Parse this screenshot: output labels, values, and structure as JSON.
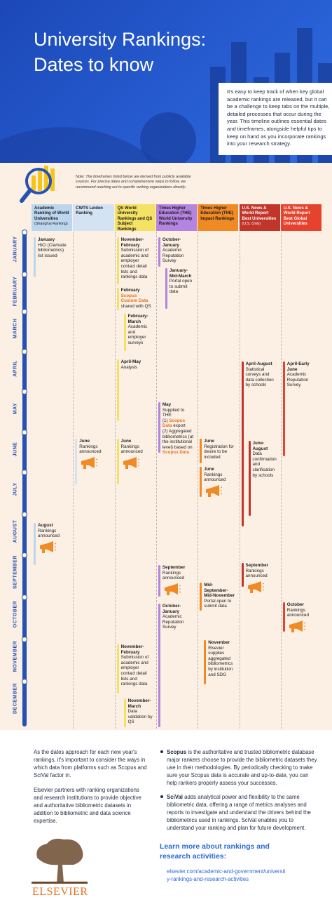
{
  "header": {
    "title": "University Rankings:\nDates to know"
  },
  "intro": "It's easy to keep track of when key global academic rankings are released, but it can be a challenge to keep tabs on the multiple, detailed processes that occur during the year. This timeline outlines essential dates and timeframes, alongside helpful tips to keep on hand as you incorporate rankings into your research strategy.",
  "note": "Note: The timeframes listed below are derived from publicly available sources. For precise dates and comprehensive steps to follow, we recommend reaching out to specific ranking organizations directly.",
  "months": [
    "JANUARY",
    "FEBRUARY",
    "MARCH",
    "APRIL",
    "MAY",
    "JUNE",
    "JULY",
    "AUGUST",
    "SEPTEMBER",
    "OCTOBER",
    "NOVEMBER",
    "DECEMBER"
  ],
  "columns": [
    {
      "header": "Academic Ranking of World Universities",
      "subheader": "(Shanghai Ranking)",
      "color": "#bcd6f0",
      "entries": [
        {
          "when": "January",
          "text": [
            {
              "text": "HiCi (Clarivate bibliometrics) list issued"
            }
          ]
        },
        {
          "when": "August",
          "text": [
            {
              "text": "Rankings announced"
            }
          ]
        }
      ]
    },
    {
      "header": "CWTS Leiden Ranking",
      "color": "#d3e3f4",
      "entries": [
        {
          "when": "June",
          "text": [
            {
              "text": "Rankings announced"
            }
          ]
        }
      ]
    },
    {
      "header": "QS World University Rankings and QS Subject Rankings",
      "color": "#f5e163",
      "entries": [
        {
          "when": "November-February",
          "text": [
            {
              "text": "Submission of academic and employer contact detail lists and rankings data"
            }
          ]
        },
        {
          "when": "February",
          "text": [
            {
              "text": "Scopus Custom Data",
              "highlight": true
            },
            {
              "text": " shared with QS"
            }
          ]
        },
        {
          "when": "February-March",
          "text": [
            {
              "text": "Academic and employer surveys"
            }
          ]
        },
        {
          "when": "April-May",
          "text": [
            {
              "text": "Analysis"
            }
          ]
        },
        {
          "when": "June",
          "text": [
            {
              "text": "Rankings announced"
            }
          ]
        },
        {
          "when": "November-February",
          "text": [
            {
              "text": "Submission of academic and employer contact detail lists and rankings data"
            }
          ]
        },
        {
          "when": "November-March",
          "text": [
            {
              "text": "Data validation by QS"
            }
          ]
        }
      ]
    },
    {
      "header": "Times Higher Education (THE) World University Rankings",
      "color": "#b583e0",
      "entries": [
        {
          "when": "October-January",
          "text": [
            {
              "text": "Academic Reputation Survey"
            }
          ]
        },
        {
          "when": "January-Mid-March",
          "text": [
            {
              "text": "Portal open to submit data"
            }
          ]
        },
        {
          "when": "May",
          "text": [
            {
              "text": "Supplied to THE:\n(1) "
            },
            {
              "text": "Scopus Data",
              "highlight": true
            },
            {
              "text": " export\n(2) Aggregated bibliometrics (at the institutional level) based on "
            },
            {
              "text": "Scopus Data",
              "highlight": true
            }
          ]
        },
        {
          "when": "September",
          "text": [
            {
              "text": "Rankings announced"
            }
          ]
        },
        {
          "when": "October-January",
          "text": [
            {
              "text": "Academic Reputation Survey"
            }
          ]
        }
      ]
    },
    {
      "header": "Times Higher Education (THE) Impact Rankings",
      "color": "#ef8a25",
      "entries": [
        {
          "when": "June",
          "text": [
            {
              "text": "Registration for desire to be included"
            }
          ]
        },
        {
          "when": "June",
          "text": [
            {
              "text": "Rankings announced"
            }
          ]
        },
        {
          "when": "Mid-September-Mid-November",
          "text": [
            {
              "text": "Portal open to submit data"
            }
          ]
        },
        {
          "when": "November",
          "text": [
            {
              "text": "Elsevier supplies aggregated bibliometrics by institution and SDG"
            }
          ]
        }
      ]
    },
    {
      "header": "U.S. News & World Report Best Universities",
      "subheader": "(U.S. Only)",
      "color": "#c1352b",
      "entries": [
        {
          "when": "April-August",
          "text": [
            {
              "text": "Statistical surveys and data collection by schools"
            }
          ]
        },
        {
          "when": "June-August",
          "text": [
            {
              "text": "Data confirmation and clarification by schools"
            }
          ]
        },
        {
          "when": "September",
          "text": [
            {
              "text": "Rankings announced"
            }
          ]
        }
      ]
    },
    {
      "header": "U.S. News & World Report Best Global Universities",
      "color": "#e5432e",
      "entries": [
        {
          "when": "April-Early June",
          "text": [
            {
              "text": "Academic Reputation Survey"
            }
          ]
        },
        {
          "when": "October",
          "text": [
            {
              "text": "Rankings announced"
            }
          ]
        }
      ]
    }
  ],
  "footer": {
    "left": [
      "As the dates approach for each new year's rankings, it's important to consider the ways in which data from platforms such as Scopus and SciVal factor in.",
      "Elsevier partners with ranking organizations and research institutions to provide objective and authoritative bibliometric datasets in addition to bibliometric and data science expertise."
    ],
    "bullets": [
      [
        {
          "text": "Scopus",
          "bold": true
        },
        {
          "text": " is the authoritative and trusted bibliometric database major rankers choose to provide the bibliometric datasets they use in their methodologies. By periodically checking to make sure your Scopus data is accurate and up-to-date, you can help rankers properly assess your successes."
        }
      ],
      [
        {
          "text": "SciVal",
          "bold": true
        },
        {
          "text": " adds analytical power and flexibility to the same bibliometric data, offering a range of metrics analyses and reports to investigate and understand the drivers behind the bibliometrics used in rankings. SciVal enables you to understand your ranking and plan for future development."
        }
      ]
    ],
    "cta": "Learn more about rankings and research activities:",
    "link": "elsevier.com/academic-and-government/university-rankings-and-research-activities",
    "logo": "ELSEVIER"
  }
}
